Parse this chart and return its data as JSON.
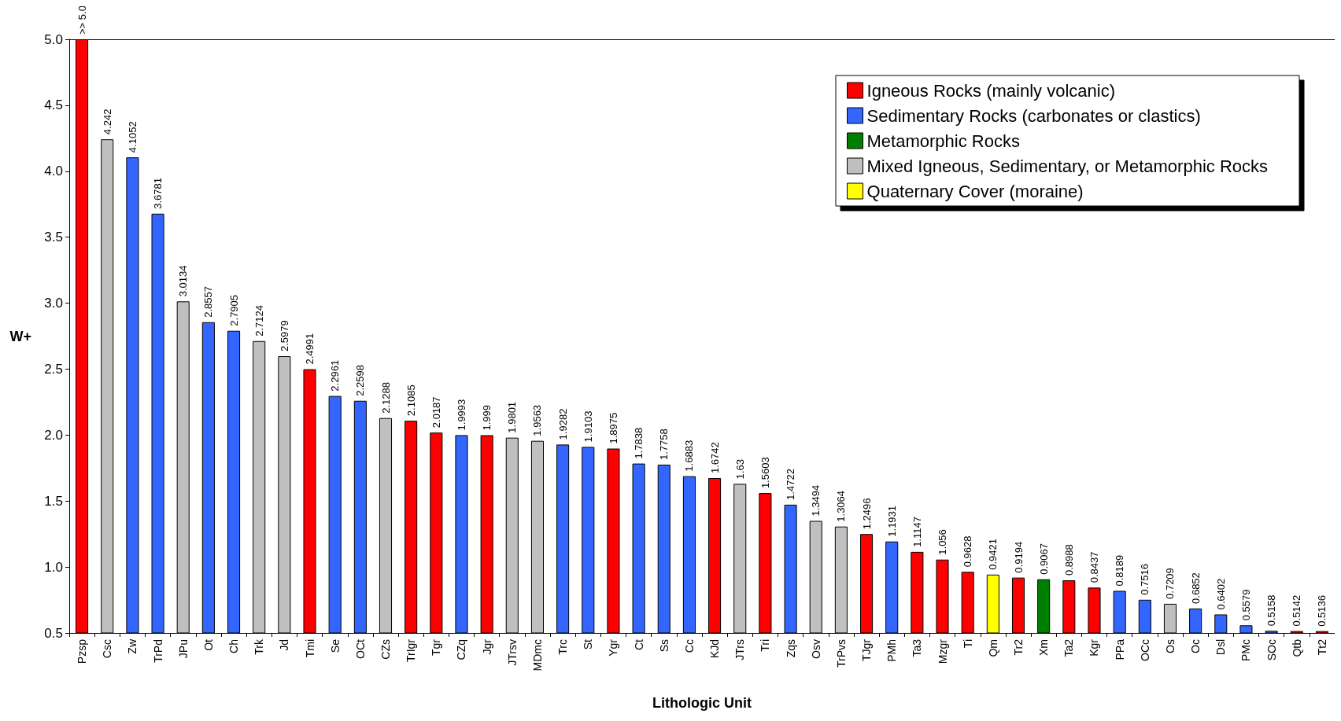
{
  "chart_data": {
    "type": "bar",
    "xlabel": "Lithologic Unit",
    "ylabel": "W+",
    "categories": [
      "Pzsp",
      "Csc",
      "Zw",
      "TrPd",
      "JPu",
      "Ot",
      "Ch",
      "Trk",
      "Jd",
      "Tmi",
      "Se",
      "OCt",
      "CZs",
      "TrIgr",
      "Tgr",
      "CZq",
      "Jgr",
      "JTrsv",
      "MDmc",
      "Trc",
      "St",
      "Ygr",
      "Ct",
      "Ss",
      "Cc",
      "KJd",
      "JTrs",
      "Tri",
      "Zqs",
      "Osv",
      "TrPvs",
      "TJgr",
      "PMh",
      "Ta3",
      "Mzgr",
      "Ti",
      "Qm",
      "Tr2",
      "Xm",
      "Ta2",
      "Kgr",
      "PPa",
      "OCc",
      "Os",
      "Oc",
      "Dsl",
      "PMc",
      "SOc",
      "Qtb",
      "Tt2"
    ],
    "series": [
      {
        "name": "Igneous Rocks (mainly volcanic)",
        "color": "#ff0000",
        "values": [
          5.0,
          null,
          null,
          null,
          null,
          null,
          null,
          null,
          null,
          2.4991,
          null,
          null,
          null,
          2.1085,
          2.0187,
          null,
          1.999,
          null,
          null,
          null,
          null,
          1.8975,
          null,
          null,
          null,
          1.6742,
          null,
          1.5603,
          null,
          null,
          null,
          1.2496,
          null,
          1.1147,
          1.056,
          0.9628,
          null,
          0.9194,
          null,
          0.8988,
          0.8437,
          null,
          null,
          null,
          null,
          null,
          null,
          null,
          0.5142,
          0.5136
        ],
        "value_labels": [
          ">> 5.0",
          null,
          null,
          null,
          null,
          null,
          null,
          null,
          null,
          "2.4991",
          null,
          null,
          null,
          "2.1085",
          "2.0187",
          null,
          "1.999",
          null,
          null,
          null,
          null,
          "1.8975",
          null,
          null,
          null,
          "1.6742",
          null,
          "1.5603",
          null,
          null,
          null,
          "1.2496",
          null,
          "1.1147",
          "1.056",
          "0.9628",
          null,
          "0.9194",
          null,
          "0.8988",
          "0.8437",
          null,
          null,
          null,
          null,
          null,
          null,
          null,
          "0.5142",
          "0.5136"
        ]
      },
      {
        "name": "Sedimentary Rocks (carbonates or clastics)",
        "color": "#3366ff",
        "values": [
          null,
          null,
          4.1052,
          3.6781,
          null,
          2.8557,
          2.7905,
          null,
          null,
          null,
          2.2961,
          2.2598,
          null,
          null,
          null,
          1.9993,
          null,
          null,
          null,
          1.9282,
          1.9103,
          null,
          1.7838,
          1.7758,
          1.6883,
          null,
          null,
          null,
          1.4722,
          null,
          null,
          null,
          1.1931,
          null,
          null,
          null,
          null,
          null,
          null,
          null,
          null,
          0.8189,
          0.7516,
          null,
          0.6852,
          0.6402,
          0.5579,
          0.5158,
          null,
          null
        ],
        "value_labels": [
          null,
          null,
          "4.1052",
          "3.6781",
          null,
          "2.8557",
          "2.7905",
          null,
          null,
          null,
          "2.2961",
          "2.2598",
          null,
          null,
          null,
          "1.9993",
          null,
          null,
          null,
          "1.9282",
          "1.9103",
          null,
          "1.7838",
          "1.7758",
          "1.6883",
          null,
          null,
          null,
          "1.4722",
          null,
          null,
          null,
          "1.1931",
          null,
          null,
          null,
          null,
          null,
          null,
          null,
          null,
          "0.8189",
          "0.7516",
          null,
          "0.6852",
          "0.6402",
          "0.5579",
          "0.5158",
          null,
          null
        ]
      },
      {
        "name": "Metamorphic Rocks",
        "color": "#008000",
        "values": [
          null,
          null,
          null,
          null,
          null,
          null,
          null,
          null,
          null,
          null,
          null,
          null,
          null,
          null,
          null,
          null,
          null,
          null,
          null,
          null,
          null,
          null,
          null,
          null,
          null,
          null,
          null,
          null,
          null,
          null,
          null,
          null,
          null,
          null,
          null,
          null,
          null,
          null,
          0.9067,
          null,
          null,
          null,
          null,
          null,
          null,
          null,
          null,
          null,
          null,
          null
        ],
        "value_labels": [
          null,
          null,
          null,
          null,
          null,
          null,
          null,
          null,
          null,
          null,
          null,
          null,
          null,
          null,
          null,
          null,
          null,
          null,
          null,
          null,
          null,
          null,
          null,
          null,
          null,
          null,
          null,
          null,
          null,
          null,
          null,
          null,
          null,
          null,
          null,
          null,
          null,
          null,
          "0.9067",
          null,
          null,
          null,
          null,
          null,
          null,
          null,
          null,
          null,
          null,
          null
        ]
      },
      {
        "name": "Mixed Igneous, Sedimentary, or Metamorphic Rocks",
        "color": "#c0c0c0",
        "values": [
          null,
          4.242,
          null,
          null,
          3.0134,
          null,
          null,
          2.7124,
          2.5979,
          null,
          null,
          null,
          2.1288,
          null,
          null,
          null,
          null,
          1.9801,
          1.9563,
          null,
          null,
          null,
          null,
          null,
          null,
          null,
          1.63,
          null,
          null,
          1.3494,
          1.3064,
          null,
          null,
          null,
          null,
          null,
          null,
          null,
          null,
          null,
          null,
          null,
          null,
          0.7209,
          null,
          null,
          null,
          null,
          null,
          null
        ],
        "value_labels": [
          null,
          "4.242",
          null,
          null,
          "3.0134",
          null,
          null,
          "2.7124",
          "2.5979",
          null,
          null,
          null,
          "2.1288",
          null,
          null,
          null,
          null,
          "1.9801",
          "1.9563",
          null,
          null,
          null,
          null,
          null,
          null,
          null,
          "1.63",
          null,
          null,
          "1.3494",
          "1.3064",
          null,
          null,
          null,
          null,
          null,
          null,
          null,
          null,
          null,
          null,
          null,
          null,
          "0.7209",
          null,
          null,
          null,
          null,
          null,
          null
        ]
      },
      {
        "name": "Quaternary Cover (moraine)",
        "color": "#ffff00",
        "values": [
          null,
          null,
          null,
          null,
          null,
          null,
          null,
          null,
          null,
          null,
          null,
          null,
          null,
          null,
          null,
          null,
          null,
          null,
          null,
          null,
          null,
          null,
          null,
          null,
          null,
          null,
          null,
          null,
          null,
          null,
          null,
          null,
          null,
          null,
          null,
          null,
          0.9421,
          null,
          null,
          null,
          null,
          null,
          null,
          null,
          null,
          null,
          null,
          null,
          null,
          null
        ],
        "value_labels": [
          null,
          null,
          null,
          null,
          null,
          null,
          null,
          null,
          null,
          null,
          null,
          null,
          null,
          null,
          null,
          null,
          null,
          null,
          null,
          null,
          null,
          null,
          null,
          null,
          null,
          null,
          null,
          null,
          null,
          null,
          null,
          null,
          null,
          null,
          null,
          null,
          "0.9421",
          null,
          null,
          null,
          null,
          null,
          null,
          null,
          null,
          null,
          null,
          null,
          null,
          null
        ]
      }
    ],
    "ylim": [
      0.5,
      5.0
    ],
    "yticks": [
      0.5,
      {
        "value": 1,
        "label": "1.0"
      },
      1.5,
      {
        "value": 2,
        "label": "2.0"
      },
      2.5,
      {
        "value": 3,
        "label": "3.0"
      },
      3.5,
      {
        "value": 4,
        "label": "4.0"
      },
      4.5,
      {
        "value": 5,
        "label": "5.0"
      }
    ],
    "grid": false,
    "legend": "top right"
  }
}
